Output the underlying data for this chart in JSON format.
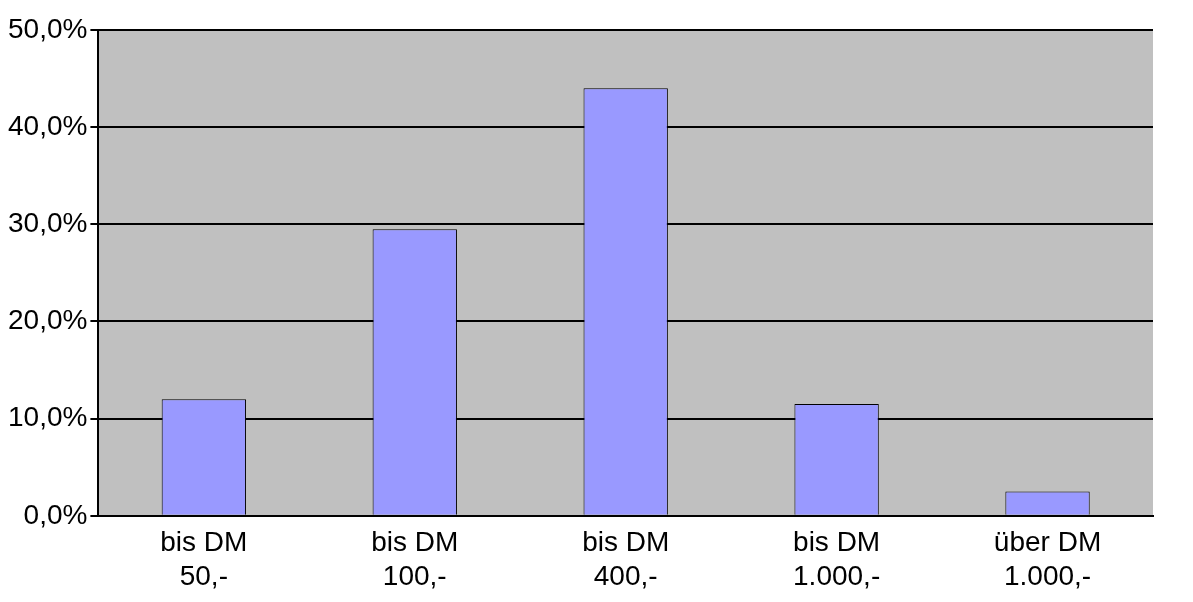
{
  "chart_data": {
    "type": "bar",
    "categories": [
      "bis DM 50,-",
      "bis DM 100,-",
      "bis DM 400,-",
      "bis DM 1.000,-",
      "über DM 1.000,-"
    ],
    "values": [
      12,
      29.5,
      44,
      11.5,
      2.5
    ],
    "color": "#9999ff",
    "ylim": [
      0,
      50
    ],
    "yticks": [
      {
        "value": 0,
        "label": "0,0%"
      },
      {
        "value": 10,
        "label": "10,0%"
      },
      {
        "value": 20,
        "label": "20,0%"
      },
      {
        "value": 30,
        "label": "30,0%"
      },
      {
        "value": 40,
        "label": "40,0%"
      },
      {
        "value": 50,
        "label": "50,0%"
      }
    ],
    "grid": "y",
    "legend": false
  }
}
